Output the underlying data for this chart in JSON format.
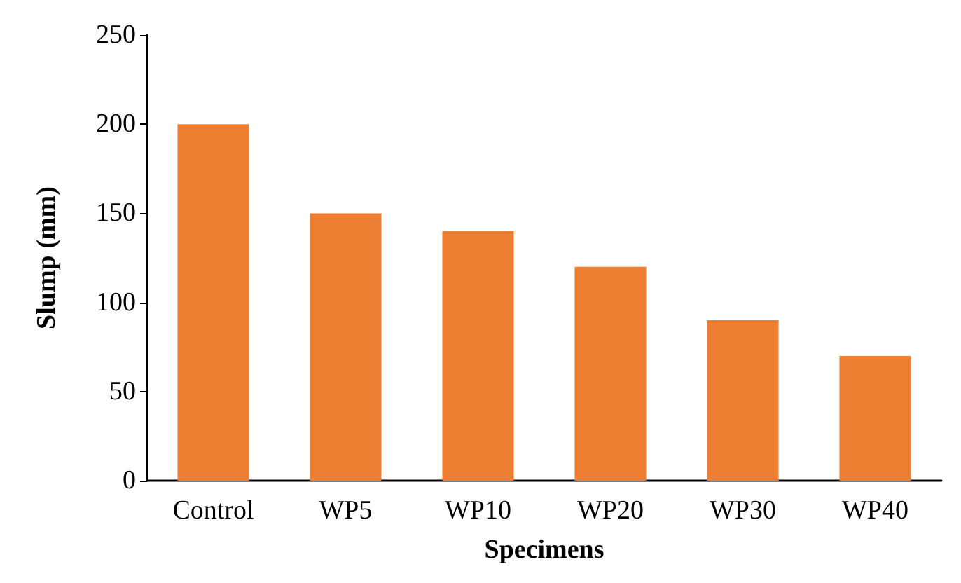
{
  "chart_data": {
    "type": "bar",
    "xlabel": "Specimens",
    "ylabel": "Slump (mm)",
    "categories": [
      "Control",
      "WP5",
      "WP10",
      "WP20",
      "WP30",
      "WP40"
    ],
    "values": [
      200,
      150,
      140,
      120,
      90,
      70
    ],
    "color": "#ed7d31",
    "ylim": [
      0,
      250
    ],
    "yticks": [
      0,
      50,
      100,
      150,
      200,
      250
    ],
    "grid": false
  }
}
